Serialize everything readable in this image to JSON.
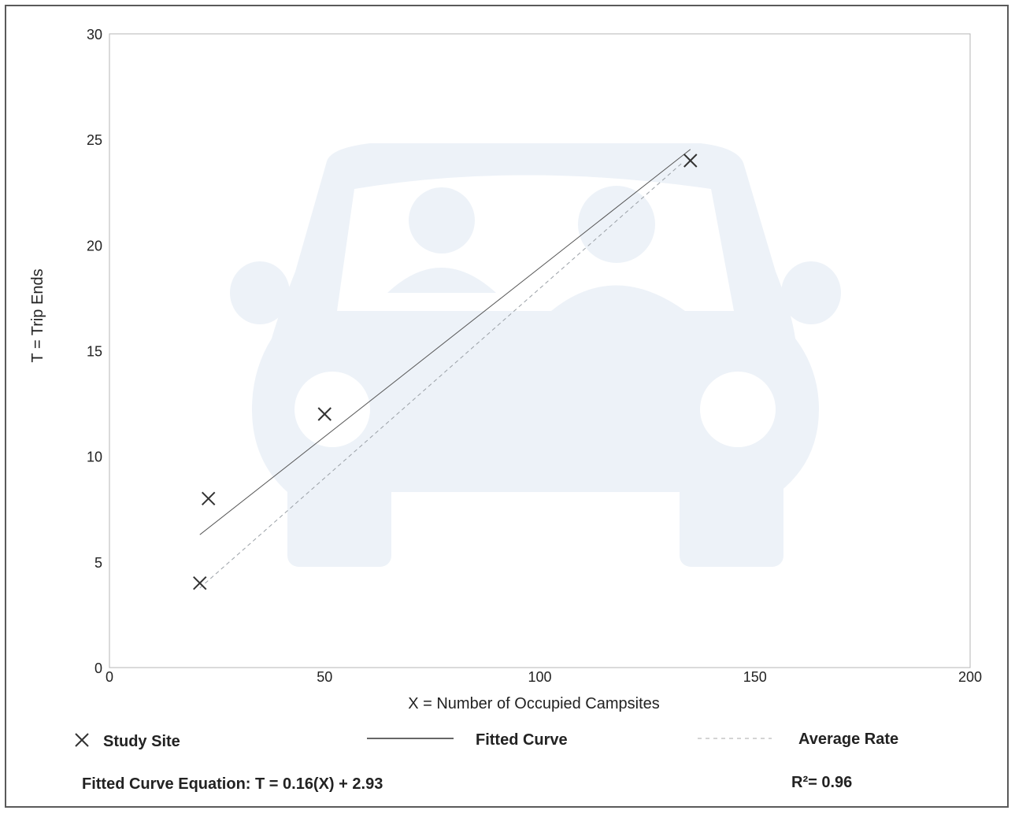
{
  "chart_data": {
    "type": "scatter",
    "xlabel": "X = Number of Occupied Campsites",
    "ylabel": "T = Trip Ends",
    "xlim": [
      0,
      200
    ],
    "ylim": [
      0,
      30
    ],
    "xticks": [
      0,
      50,
      100,
      150,
      200
    ],
    "yticks": [
      0,
      5,
      10,
      15,
      20,
      25,
      30
    ],
    "grid": false,
    "series": [
      {
        "name": "Study Site",
        "points": [
          {
            "x": 21,
            "y": 4
          },
          {
            "x": 23,
            "y": 8
          },
          {
            "x": 50,
            "y": 12
          },
          {
            "x": 135,
            "y": 24
          }
        ]
      }
    ],
    "fitted_curve": {
      "slope": 0.16,
      "intercept": 2.93,
      "x_range": [
        21,
        135
      ]
    },
    "average_rate": {
      "slope": 0.1795,
      "x_range": [
        21,
        133
      ]
    },
    "legend": {
      "placement": "bottom",
      "study_site": "Study Site",
      "fitted_curve": "Fitted Curve",
      "average_rate": "Average Rate"
    },
    "equation": "Fitted Curve Equation: T = 0.16(X) + 2.93",
    "r_squared": "R²= 0.96"
  },
  "colors": {
    "watermark": "#edf2f8",
    "marker": "#333333",
    "fitted": "#555555",
    "average": "#9aa0a6",
    "axis": "#999999"
  },
  "watermark_icon": "car-with-passengers-icon"
}
